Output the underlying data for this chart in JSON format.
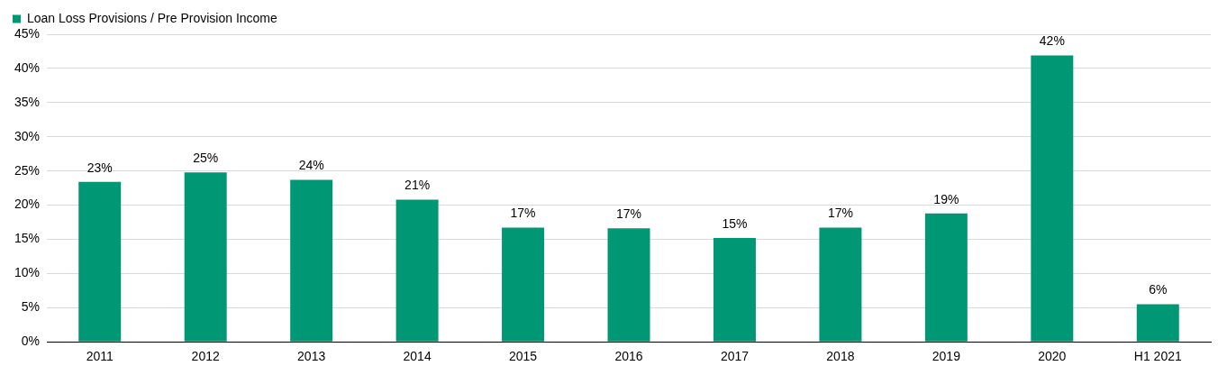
{
  "chart_data": {
    "type": "bar",
    "categories": [
      "2011",
      "2012",
      "2013",
      "2014",
      "2015",
      "2016",
      "2017",
      "2018",
      "2019",
      "2020",
      "H1 2021"
    ],
    "series": [
      {
        "name": "Loan Loss Provisions / Pre Provision Income",
        "color": "#009874",
        "values": [
          23.4,
          24.8,
          23.7,
          20.8,
          16.7,
          16.6,
          15.2,
          16.7,
          18.8,
          41.9,
          5.5
        ],
        "value_labels": [
          "23%",
          "25%",
          "24%",
          "21%",
          "17%",
          "17%",
          "15%",
          "17%",
          "19%",
          "42%",
          "6%"
        ]
      }
    ],
    "ylim": [
      0,
      45
    ],
    "yticks": [
      {
        "value": 0,
        "label": "0%"
      },
      {
        "value": 5,
        "label": "5%"
      },
      {
        "value": 10,
        "label": "10%"
      },
      {
        "value": 15,
        "label": "15%"
      },
      {
        "value": 20,
        "label": "20%"
      },
      {
        "value": 25,
        "label": "25%"
      },
      {
        "value": 30,
        "label": "30%"
      },
      {
        "value": 35,
        "label": "35%"
      },
      {
        "value": 40,
        "label": "40%"
      },
      {
        "value": 45,
        "label": "45%"
      }
    ],
    "grid": "y",
    "legend": "top"
  }
}
